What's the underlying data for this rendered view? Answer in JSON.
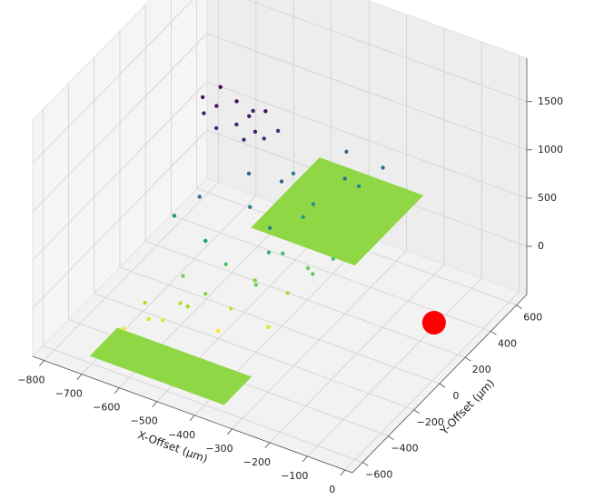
{
  "chart_data": {
    "type": "scatter3d",
    "xlabel": "X-Offset (μm)",
    "ylabel": "Y-Offset (μm)",
    "xlim": [
      -830,
      20
    ],
    "ylim": [
      -680,
      680
    ],
    "zlim": [
      -500,
      1950
    ],
    "xticks": [
      {
        "value": -800,
        "label": "−800"
      },
      {
        "value": -700,
        "label": "−700"
      },
      {
        "value": -600,
        "label": "−600"
      },
      {
        "value": -500,
        "label": "−500"
      },
      {
        "value": -400,
        "label": "−400"
      },
      {
        "value": -300,
        "label": "−300"
      },
      {
        "value": -200,
        "label": "−200"
      },
      {
        "value": -100,
        "label": "−100"
      },
      0
    ],
    "yticks": [
      {
        "value": -600,
        "label": "−600"
      },
      {
        "value": -400,
        "label": "−400"
      },
      {
        "value": -200,
        "label": "−200"
      },
      0,
      200,
      400,
      600
    ],
    "zticks": [
      0,
      500,
      1000,
      1500
    ],
    "grid": true,
    "colormap": "viridis_r",
    "planes": [
      {
        "x": [
          -690,
          -335
        ],
        "y": [
          -640,
          -430
        ],
        "z": -350,
        "color": "#8fd744"
      },
      {
        "x": [
          -500,
          -226
        ],
        "y": [
          60,
          590
        ],
        "z": 300,
        "color": "#8fd744"
      }
    ],
    "points": {
      "x": [
        -600,
        -580,
        -560,
        -540,
        -520,
        -500,
        -480,
        -470,
        -450,
        -590,
        -510,
        -460,
        -620,
        -430,
        -550,
        -450,
        -400,
        -350,
        -300,
        -500,
        -420,
        -380,
        -330,
        -280,
        -600,
        -360,
        -250,
        -470,
        -600,
        -550,
        -500,
        -450,
        -400,
        -350,
        -300,
        -650,
        -580,
        -520,
        -480,
        -420,
        -380,
        -330,
        -280,
        -620,
        -560,
        -460,
        -400,
        -350
      ],
      "y": [
        -20,
        20,
        -40,
        60,
        0,
        40,
        -60,
        80,
        10,
        80,
        100,
        -30,
        30,
        60,
        -200,
        -100,
        0,
        100,
        200,
        -300,
        150,
        -150,
        300,
        250,
        -250,
        50,
        350,
        -50,
        -450,
        -350,
        -300,
        -250,
        -200,
        -100,
        -50,
        -500,
        -400,
        -380,
        -200,
        -150,
        -50,
        0,
        50,
        -420,
        -300,
        -320,
        -100,
        -250
      ],
      "z": [
        1450,
        1500,
        1380,
        1550,
        1420,
        1480,
        1400,
        1520,
        1360,
        1600,
        1440,
        1470,
        1520,
        1400,
        900,
        800,
        1000,
        700,
        900,
        650,
        850,
        750,
        1000,
        780,
        700,
        620,
        880,
        1050,
        -100,
        0,
        100,
        -50,
        200,
        50,
        250,
        -200,
        -150,
        50,
        300,
        150,
        350,
        200,
        300,
        0,
        200,
        -200,
        400,
        -100
      ]
    },
    "marker": {
      "x": -80,
      "y": 250,
      "z": -350,
      "color": "#ff0000"
    }
  }
}
